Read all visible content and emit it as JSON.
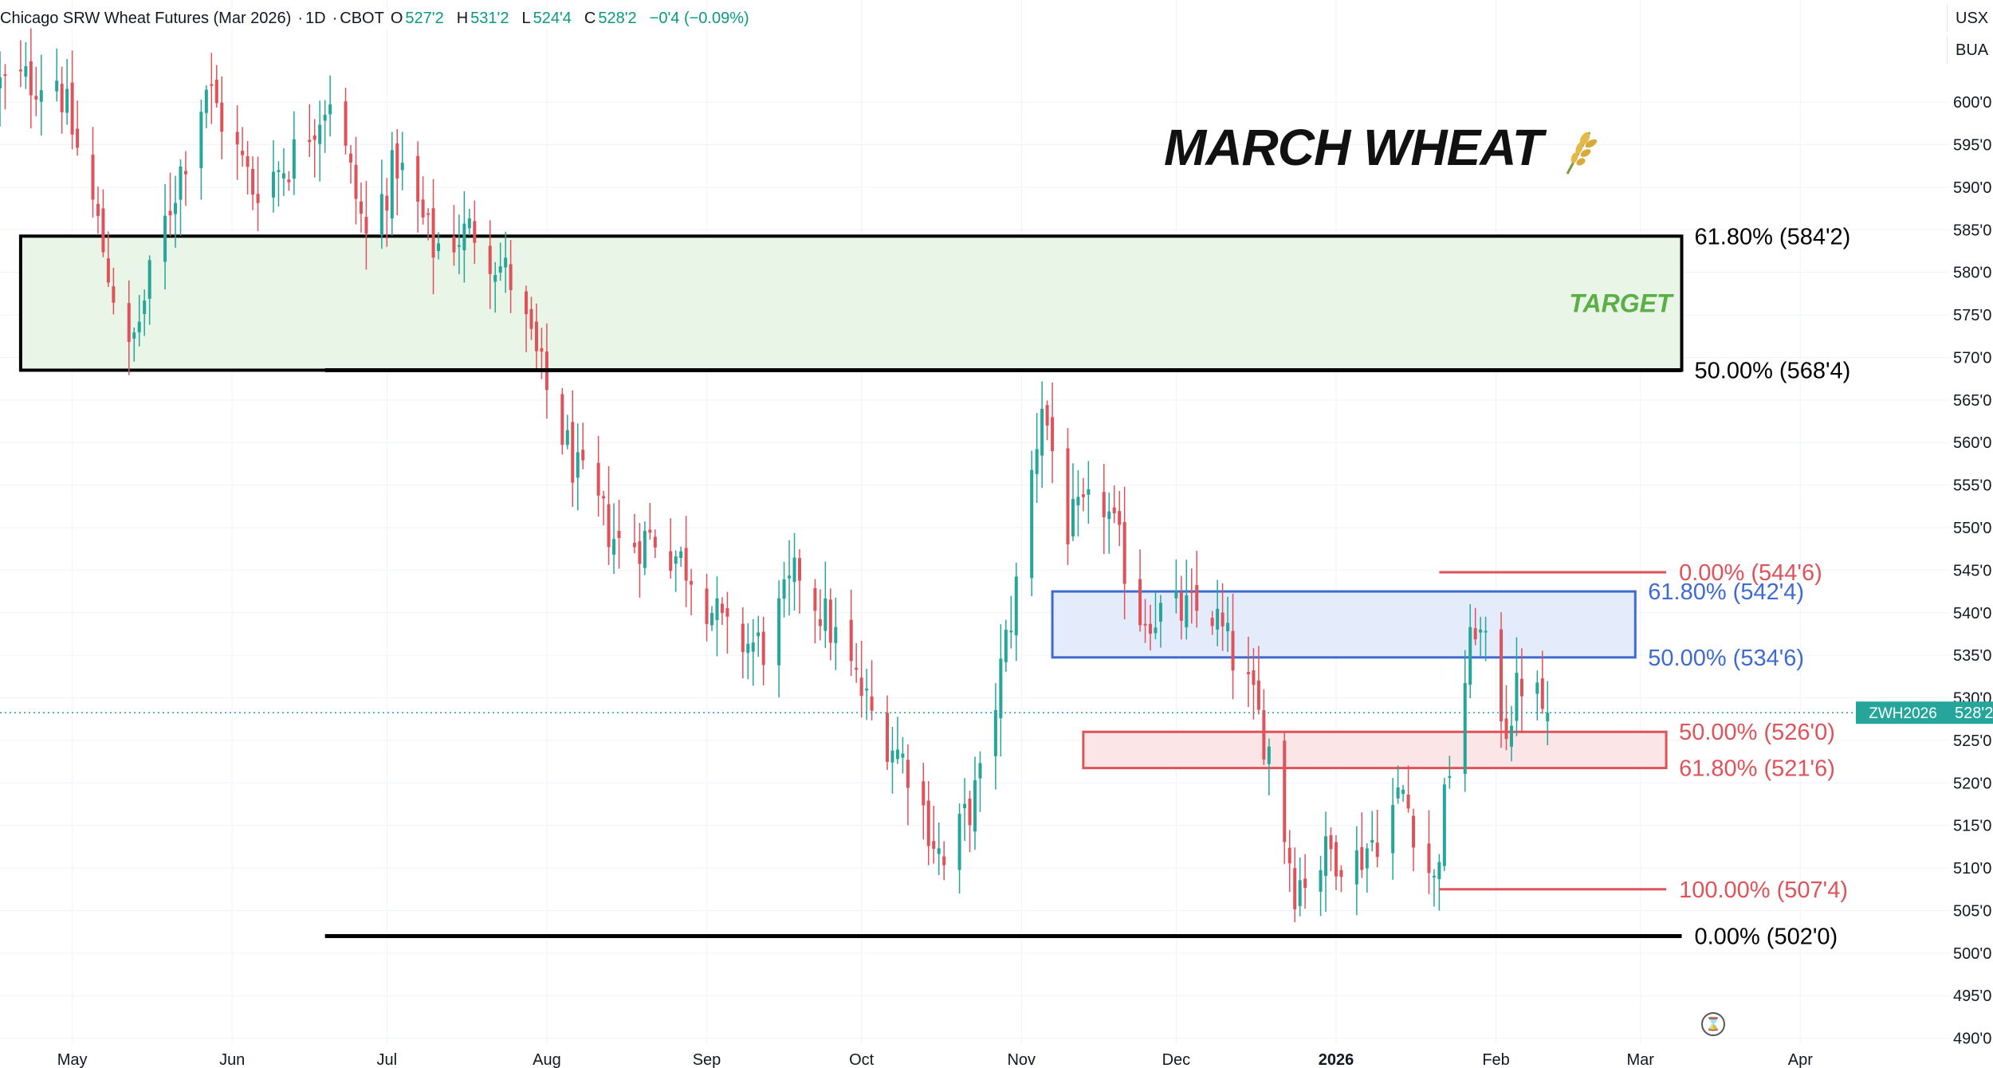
{
  "header": {
    "symbol_name": "Chicago SRW Wheat Futures (Mar 2026)",
    "interval": "1D",
    "exchange": "CBOT",
    "open_label": "O",
    "open": "527'2",
    "high_label": "H",
    "high": "531'2",
    "low_label": "L",
    "low": "524'4",
    "close_label": "C",
    "close": "528'2",
    "change": "−0'4 (−0.09%)"
  },
  "scale_buttons": [
    "USX",
    "BUA"
  ],
  "title": "MARCH WHEAT",
  "title_icon": "wheat-icon",
  "price_tag": {
    "symbol": "ZWH2026",
    "price": "528'2",
    "value": 528.25,
    "color": "#26a69a"
  },
  "colors": {
    "up": "#26a69a",
    "down": "#e0525a",
    "black": "#000000",
    "blue": "#3f6bd1",
    "red": "#e0525a",
    "green_label": "#5aaf46"
  },
  "chart_data": {
    "type": "candlestick",
    "ylim": [
      486.5,
      612
    ],
    "y_ticks": [
      {
        "v": 600,
        "label": "600'0"
      },
      {
        "v": 595,
        "label": "595'0"
      },
      {
        "v": 590,
        "label": "590'0"
      },
      {
        "v": 585,
        "label": "585'0"
      },
      {
        "v": 580,
        "label": "580'0"
      },
      {
        "v": 575,
        "label": "575'0"
      },
      {
        "v": 570,
        "label": "570'0"
      },
      {
        "v": 565,
        "label": "565'0"
      },
      {
        "v": 560,
        "label": "560'0"
      },
      {
        "v": 555,
        "label": "555'0"
      },
      {
        "v": 550,
        "label": "550'0"
      },
      {
        "v": 545,
        "label": "545'0"
      },
      {
        "v": 540,
        "label": "540'0"
      },
      {
        "v": 535,
        "label": "535'0"
      },
      {
        "v": 530,
        "label": "530'0"
      },
      {
        "v": 525,
        "label": "525'0"
      },
      {
        "v": 520,
        "label": "520'0"
      },
      {
        "v": 515,
        "label": "515'0"
      },
      {
        "v": 510,
        "label": "510'0"
      },
      {
        "v": 505,
        "label": "505'0"
      },
      {
        "v": 500,
        "label": "500'0"
      },
      {
        "v": 495,
        "label": "495'0"
      },
      {
        "v": 490,
        "label": "490'0"
      }
    ],
    "x_start": "2025-04-17",
    "x_end": "2026-04-30",
    "x_ticks": [
      {
        "date": "2025-05-01",
        "label": "May",
        "bold": false
      },
      {
        "date": "2025-06-01",
        "label": "Jun",
        "bold": false
      },
      {
        "date": "2025-07-01",
        "label": "Jul",
        "bold": false
      },
      {
        "date": "2025-08-01",
        "label": "Aug",
        "bold": false
      },
      {
        "date": "2025-09-01",
        "label": "Sep",
        "bold": false
      },
      {
        "date": "2025-10-01",
        "label": "Oct",
        "bold": false
      },
      {
        "date": "2025-11-01",
        "label": "Nov",
        "bold": false
      },
      {
        "date": "2025-12-01",
        "label": "Dec",
        "bold": false
      },
      {
        "date": "2026-01-01",
        "label": "2026",
        "bold": true
      },
      {
        "date": "2026-02-01",
        "label": "Feb",
        "bold": false
      },
      {
        "date": "2026-03-01",
        "label": "Mar",
        "bold": false
      },
      {
        "date": "2026-04-01",
        "label": "Apr",
        "bold": false
      }
    ],
    "price_path": [
      [
        "2025-04-17",
        602
      ],
      [
        "2025-04-28",
        603
      ],
      [
        "2025-05-05",
        588
      ],
      [
        "2025-05-12",
        570
      ],
      [
        "2025-05-20",
        588
      ],
      [
        "2025-05-27",
        602
      ],
      [
        "2025-06-05",
        590
      ],
      [
        "2025-06-12",
        593
      ],
      [
        "2025-06-20",
        601
      ],
      [
        "2025-06-27",
        584
      ],
      [
        "2025-07-03",
        593
      ],
      [
        "2025-07-10",
        583
      ],
      [
        "2025-07-18",
        585
      ],
      [
        "2025-07-25",
        579
      ],
      [
        "2025-08-01",
        566
      ],
      [
        "2025-08-07",
        556
      ],
      [
        "2025-08-15",
        548
      ],
      [
        "2025-08-22",
        549
      ],
      [
        "2025-08-29",
        545
      ],
      [
        "2025-09-05",
        537
      ],
      [
        "2025-09-12",
        536
      ],
      [
        "2025-09-19",
        545
      ],
      [
        "2025-09-26",
        537
      ],
      [
        "2025-10-03",
        528
      ],
      [
        "2025-10-10",
        522
      ],
      [
        "2025-10-17",
        510
      ],
      [
        "2025-10-24",
        520
      ],
      [
        "2025-10-31",
        543
      ],
      [
        "2025-11-05",
        565
      ],
      [
        "2025-11-10",
        550
      ],
      [
        "2025-11-17",
        553
      ],
      [
        "2025-11-24",
        540
      ],
      [
        "2025-12-01",
        540
      ],
      [
        "2025-12-08",
        540
      ],
      [
        "2025-12-15",
        531
      ],
      [
        "2025-12-19",
        524
      ],
      [
        "2025-12-24",
        508
      ],
      [
        "2025-12-31",
        512
      ],
      [
        "2026-01-05",
        511
      ],
      [
        "2026-01-09",
        514
      ],
      [
        "2026-01-14",
        519
      ],
      [
        "2026-01-20",
        508
      ],
      [
        "2026-01-23",
        522
      ],
      [
        "2026-01-28",
        539
      ],
      [
        "2026-02-03",
        527
      ],
      [
        "2026-02-06",
        532
      ],
      [
        "2026-02-11",
        528.25
      ]
    ],
    "zones": [
      {
        "name": "target-zone",
        "top": 584.25,
        "bottom": 568.5,
        "fill": "#e9f5e7",
        "stroke": "#000000",
        "from": "2025-04-21",
        "to": "2026-03-09",
        "label": "TARGET"
      },
      {
        "name": "blue-fib-zone",
        "top": 542.5,
        "bottom": 534.75,
        "fill": "#e4ecfb",
        "stroke": "#3f6bd1",
        "from": "2025-11-07",
        "to": "2026-02-28"
      },
      {
        "name": "red-fib-zone",
        "top": 526.0,
        "bottom": 521.75,
        "fill": "#fbe5e6",
        "stroke": "#e0525a",
        "from": "2025-11-13",
        "to": "2026-03-06"
      }
    ],
    "levels": [
      {
        "name": "black-fib-61.8",
        "value": 584.25,
        "label": "61.80% (584'2)",
        "color": "#000000",
        "line": false
      },
      {
        "name": "black-fib-50",
        "value": 568.5,
        "label": "50.00% (568'4)",
        "color": "#000000",
        "line": true,
        "from": "2025-06-19",
        "to": "2026-03-09"
      },
      {
        "name": "black-fib-0",
        "value": 502.0,
        "label": "0.00% (502'0)",
        "color": "#000000",
        "line": true,
        "from": "2025-06-19",
        "to": "2026-03-09"
      },
      {
        "name": "red-fib-0",
        "value": 544.75,
        "label": "0.00% (544'6)",
        "color": "#e0525a",
        "line": true,
        "from": "2026-01-21",
        "to": "2026-03-06"
      },
      {
        "name": "blue-fib-61.8",
        "value": 542.5,
        "label": "61.80% (542'4)",
        "color": "#3f6bd1",
        "line": false
      },
      {
        "name": "blue-fib-50",
        "value": 534.75,
        "label": "50.00% (534'6)",
        "color": "#3f6bd1",
        "line": false
      },
      {
        "name": "red-fib-50",
        "value": 526.0,
        "label": "50.00% (526'0)",
        "color": "#e0525a",
        "line": false
      },
      {
        "name": "red-fib-61.8",
        "value": 521.75,
        "label": "61.80% (521'6)",
        "color": "#e0525a",
        "line": false
      },
      {
        "name": "red-fib-100",
        "value": 507.5,
        "label": "100.00% (507'4)",
        "color": "#e0525a",
        "line": true,
        "from": "2026-01-21",
        "to": "2026-03-06"
      }
    ]
  }
}
